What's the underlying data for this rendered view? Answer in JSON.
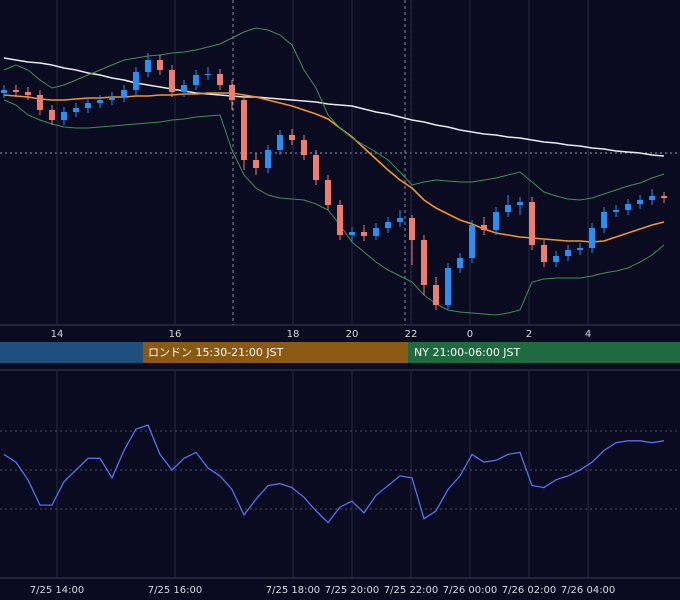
{
  "chart_data": {
    "type": "candlestick",
    "ylim": [
      0,
      325
    ],
    "xlim": [
      -0.33,
      56.33
    ],
    "xticks": [
      {
        "value": 4.42,
        "label": "14"
      },
      {
        "value": 14.25,
        "label": "16"
      },
      {
        "value": 24.08,
        "label": "18"
      },
      {
        "value": 29,
        "label": "20"
      },
      {
        "value": 33.92,
        "label": "22"
      },
      {
        "value": 38.83,
        "label": "0"
      },
      {
        "value": 43.75,
        "label": "2"
      },
      {
        "value": 48.67,
        "label": "4"
      }
    ],
    "time_labels": [
      "7/25 14:00",
      "7/25 16:00",
      "7/25 18:00",
      "7/25 20:00",
      "7/25 22:00",
      "7/26 00:00",
      "7/26 02:00",
      "7/26 04:00"
    ],
    "sessions": [
      "ロンドン 15:30-21:00 JST",
      "NY 21:00-06:00 JST"
    ],
    "up_color": "#2a8ff0",
    "down_color": "#ee7d70",
    "candles": [
      [
        232,
        240,
        227,
        235
      ],
      [
        235,
        240,
        228,
        233
      ],
      [
        233,
        238,
        225,
        230
      ],
      [
        230,
        235,
        210,
        215
      ],
      [
        215,
        220,
        200,
        205
      ],
      [
        205,
        218,
        200,
        213
      ],
      [
        213,
        222,
        208,
        217
      ],
      [
        217,
        227,
        212,
        222
      ],
      [
        222,
        230,
        217,
        225
      ],
      [
        225,
        233,
        220,
        228
      ],
      [
        228,
        240,
        223,
        235
      ],
      [
        235,
        258,
        230,
        253
      ],
      [
        253,
        272,
        248,
        265
      ],
      [
        265,
        270,
        250,
        255
      ],
      [
        255,
        260,
        228,
        233
      ],
      [
        233,
        245,
        228,
        240
      ],
      [
        240,
        255,
        235,
        250
      ],
      [
        250,
        258,
        245,
        251
      ],
      [
        251,
        256,
        235,
        240
      ],
      [
        240,
        245,
        215,
        225
      ],
      [
        225,
        230,
        155,
        165
      ],
      [
        165,
        172,
        150,
        157
      ],
      [
        157,
        180,
        152,
        175
      ],
      [
        175,
        195,
        170,
        190
      ],
      [
        190,
        196,
        180,
        185
      ],
      [
        185,
        190,
        165,
        170
      ],
      [
        170,
        175,
        140,
        145
      ],
      [
        145,
        150,
        115,
        120
      ],
      [
        120,
        125,
        85,
        90
      ],
      [
        90,
        98,
        84,
        93
      ],
      [
        93,
        100,
        84,
        89
      ],
      [
        89,
        102,
        85,
        97
      ],
      [
        97,
        108,
        92,
        103
      ],
      [
        103,
        115,
        98,
        107
      ],
      [
        107,
        110,
        60,
        85
      ],
      [
        85,
        90,
        30,
        40
      ],
      [
        40,
        48,
        15,
        20
      ],
      [
        20,
        62,
        16,
        57
      ],
      [
        57,
        72,
        52,
        67
      ],
      [
        67,
        105,
        62,
        100
      ],
      [
        100,
        108,
        90,
        95
      ],
      [
        95,
        118,
        90,
        113
      ],
      [
        113,
        130,
        108,
        120
      ],
      [
        120,
        128,
        110,
        123
      ],
      [
        123,
        128,
        75,
        80
      ],
      [
        80,
        85,
        58,
        63
      ],
      [
        63,
        74,
        58,
        69
      ],
      [
        69,
        80,
        64,
        75
      ],
      [
        75,
        82,
        70,
        77
      ],
      [
        77,
        102,
        72,
        97
      ],
      [
        97,
        118,
        92,
        113
      ],
      [
        113,
        120,
        108,
        115
      ],
      [
        115,
        126,
        110,
        121
      ],
      [
        121,
        130,
        116,
        125
      ],
      [
        125,
        136,
        120,
        129
      ],
      [
        129,
        133,
        122,
        127
      ]
    ],
    "lines": [
      {
        "color": "#e8e8ee",
        "values": [
          267,
          265,
          263,
          262,
          260,
          257,
          255,
          252,
          250,
          247,
          245,
          242,
          240,
          238,
          236,
          234,
          232,
          231,
          230,
          229,
          228,
          228,
          227,
          226,
          225,
          224,
          223,
          221,
          220,
          219,
          216,
          213,
          211,
          208,
          205,
          203,
          200,
          198,
          195,
          193,
          191,
          190,
          188,
          187,
          185,
          183,
          182,
          180,
          179,
          177,
          176,
          174,
          173,
          172,
          170,
          169
        ]
      },
      {
        "color": "#f0962a",
        "values": [
          230,
          229,
          228,
          226,
          225,
          225,
          226,
          227,
          227,
          228,
          228,
          229,
          229,
          230,
          230,
          231,
          231,
          232,
          232,
          232,
          230,
          228,
          225,
          222,
          219,
          215,
          211,
          206,
          197,
          188,
          177,
          166,
          155,
          145,
          137,
          125,
          117,
          111,
          105,
          101,
          96,
          92,
          90,
          88,
          87,
          86,
          85,
          84,
          84,
          83,
          84,
          88,
          92,
          96,
          100,
          103
        ]
      },
      {
        "color": "#3f8f55",
        "values": [
          255,
          260,
          255,
          245,
          237,
          240,
          245,
          250,
          255,
          260,
          265,
          267,
          269,
          270,
          272,
          273,
          275,
          278,
          281,
          287,
          293,
          297,
          295,
          290,
          280,
          255,
          237,
          210,
          197,
          187,
          180,
          173,
          165,
          153,
          140,
          143,
          145,
          144,
          143,
          143,
          145,
          147,
          150,
          153,
          143,
          133,
          129,
          126,
          125,
          127,
          131,
          135,
          139,
          142,
          147,
          151
        ]
      },
      {
        "color": "#3f8f55",
        "values": [
          225,
          220,
          210,
          205,
          201,
          198,
          197,
          197,
          198,
          199,
          200,
          201,
          202,
          203,
          205,
          206,
          208,
          209,
          210,
          175,
          150,
          137,
          130,
          127,
          126,
          125,
          121,
          115,
          100,
          83,
          73,
          63,
          55,
          49,
          43,
          30,
          21,
          15,
          13,
          12,
          11,
          10,
          12,
          15,
          43,
          46,
          47,
          47,
          47,
          49,
          52,
          54,
          57,
          63,
          70,
          80
        ]
      }
    ],
    "rsi": {
      "color": "#5a6ef0",
      "ylim": [
        0,
        100
      ],
      "levels": [
        70,
        50,
        30
      ],
      "values": [
        58,
        54,
        45,
        32,
        32,
        44,
        50,
        56,
        56,
        46,
        60,
        71,
        73,
        58,
        50,
        56,
        59,
        51,
        47,
        40,
        27,
        35,
        42,
        43,
        41,
        36,
        29,
        23,
        31,
        34,
        28,
        37,
        42,
        47,
        46,
        25,
        29,
        40,
        47,
        58,
        54,
        55,
        58,
        59,
        42,
        41,
        45,
        47,
        50,
        54,
        60,
        64,
        65,
        65,
        64,
        65
      ]
    }
  }
}
